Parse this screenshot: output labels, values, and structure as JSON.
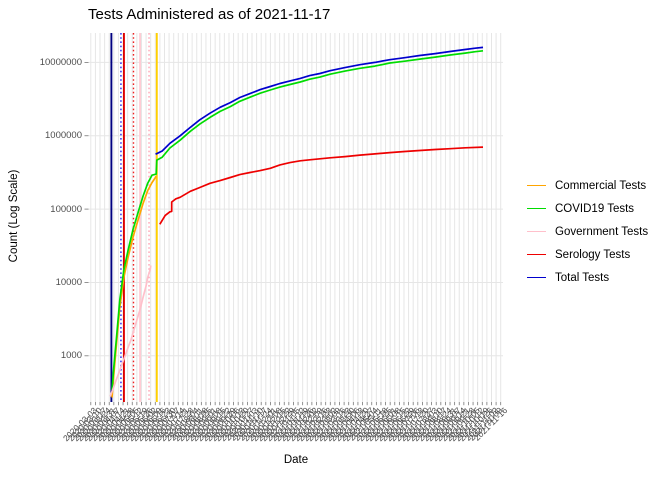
{
  "title": "Tests Administered as of 2021-11-17",
  "x_axis": {
    "label": "Date",
    "tick_labels": [
      "2020-03-03",
      "2020-03-10",
      "2020-03-17",
      "2020-03-24",
      "2020-03-31",
      "2020-04-07",
      "2020-04-14",
      "2020-04-21",
      "2020-04-28",
      "2020-05-05",
      "2020-05-12",
      "2020-05-19",
      "2020-05-26",
      "2020-06-02",
      "2020-06-09",
      "2020-06-16",
      "2020-06-23",
      "2020-06-30",
      "2020-07-07",
      "2020-07-14",
      "2020-07-21",
      "2020-07-28",
      "2020-08-04",
      "2020-08-11",
      "2020-08-18",
      "2020-08-25",
      "2020-09-01",
      "2020-09-08",
      "2020-09-15",
      "2020-09-22",
      "2020-09-29",
      "2020-10-06",
      "2020-10-13",
      "2020-10-20",
      "2020-10-27",
      "2020-11-03",
      "2020-11-10",
      "2020-11-17",
      "2020-11-24",
      "2020-12-01",
      "2020-12-08",
      "2020-12-15",
      "2020-12-22",
      "2020-12-29",
      "2021-01-05",
      "2021-01-12",
      "2021-01-19",
      "2021-01-26",
      "2021-02-02",
      "2021-02-09",
      "2021-02-16",
      "2021-02-23",
      "2021-03-02",
      "2021-03-09",
      "2021-03-16",
      "2021-03-23",
      "2021-03-30",
      "2021-04-06",
      "2021-04-13",
      "2021-04-20",
      "2021-04-27",
      "2021-05-04",
      "2021-05-11",
      "2021-05-18",
      "2021-05-25",
      "2021-06-01",
      "2021-06-08",
      "2021-06-15",
      "2021-06-22",
      "2021-06-29",
      "2021-07-06",
      "2021-07-13",
      "2021-07-20",
      "2021-07-27",
      "2021-08-03",
      "2021-08-10",
      "2021-08-17",
      "2021-08-24",
      "2021-08-31",
      "2021-09-07",
      "2021-09-14",
      "2021-09-21",
      "2021-09-28",
      "2021-10-05",
      "2021-10-12",
      "2021-10-19",
      "2021-10-26",
      "2021-11-02",
      "2021-11-09",
      "2021-11-16"
    ]
  },
  "y_axis": {
    "label": "Count (Log Scale)",
    "tick_labels": [
      "1000",
      "10000",
      "100000",
      "1000000",
      "10000000"
    ],
    "tick_values": [
      1000,
      10000,
      100000,
      1000000,
      10000000
    ]
  },
  "legend": {
    "entries": [
      {
        "label": "Commercial Tests",
        "color": "#FFA500"
      },
      {
        "label": "COVID19 Tests",
        "color": "#00DC00"
      },
      {
        "label": "Government Tests",
        "color": "#FFC0CB"
      },
      {
        "label": "Serology Tests",
        "color": "#EE0000"
      },
      {
        "label": "Total Tests",
        "color": "#0000CD"
      }
    ]
  },
  "chart_data": {
    "type": "line",
    "title": "Tests Administered as of 2021-11-17",
    "xlabel": "Date",
    "ylabel": "Count (Log Scale)",
    "y_scale": "log10",
    "ylim": [
      250,
      25000000
    ],
    "x_range": [
      "2020-03-01",
      "2021-11-17"
    ],
    "x_epoch": "2020-03-01",
    "x_max_day": 626,
    "grid": "on",
    "legend_position": "right",
    "grid_color": "#E6E6E6",
    "background": "#FFFFFF",
    "series": [
      {
        "name": "Commercial Tests",
        "color": "#FFA500",
        "points": [
          [
            5,
            270
          ],
          [
            8,
            550
          ],
          [
            12,
            1300
          ],
          [
            18,
            4600
          ],
          [
            25,
            11800
          ],
          [
            32,
            22000
          ],
          [
            40,
            41000
          ],
          [
            49,
            73000
          ],
          [
            57,
            120000
          ],
          [
            65,
            180000
          ],
          [
            72,
            230000
          ],
          [
            79,
            280000
          ]
        ]
      },
      {
        "name": "COVID19 Tests",
        "color": "#00DC00",
        "points": [
          [
            5,
            340
          ],
          [
            8,
            700
          ],
          [
            12,
            1600
          ],
          [
            18,
            5800
          ],
          [
            25,
            15000
          ],
          [
            32,
            27500
          ],
          [
            40,
            52000
          ],
          [
            49,
            92000
          ],
          [
            57,
            151000
          ],
          [
            65,
            226000
          ],
          [
            72,
            290000
          ],
          [
            79,
            300000
          ],
          [
            80,
            465000
          ],
          [
            89,
            510000
          ],
          [
            102,
            680000
          ],
          [
            119,
            870000
          ],
          [
            136,
            1150000
          ],
          [
            152,
            1440000
          ],
          [
            169,
            1780000
          ],
          [
            186,
            2150000
          ],
          [
            203,
            2500000
          ],
          [
            219,
            2950000
          ],
          [
            236,
            3350000
          ],
          [
            253,
            3800000
          ],
          [
            270,
            4200000
          ],
          [
            286,
            4600000
          ],
          [
            303,
            5000000
          ],
          [
            320,
            5400000
          ],
          [
            336,
            5900000
          ],
          [
            353,
            6300000
          ],
          [
            370,
            6900000
          ],
          [
            395,
            7600000
          ],
          [
            420,
            8300000
          ],
          [
            445,
            8900000
          ],
          [
            470,
            9800000
          ],
          [
            495,
            10400000
          ],
          [
            520,
            11100000
          ],
          [
            546,
            11800000
          ],
          [
            571,
            12600000
          ],
          [
            596,
            13400000
          ],
          [
            613,
            14000000
          ],
          [
            626,
            14400000
          ]
        ]
      },
      {
        "name": "Government Tests",
        "color": "#FFC0CB",
        "points": [
          [
            2,
            280
          ],
          [
            7,
            360
          ],
          [
            12,
            470
          ],
          [
            17,
            600
          ],
          [
            22,
            775
          ],
          [
            27,
            1000
          ],
          [
            32,
            1300
          ],
          [
            37,
            1670
          ],
          [
            42,
            2300
          ],
          [
            47,
            3150
          ],
          [
            52,
            4300
          ],
          [
            57,
            6300
          ],
          [
            62,
            8900
          ],
          [
            65,
            11800
          ],
          [
            69,
            15000
          ],
          [
            70,
            17000
          ]
        ]
      },
      {
        "name": "Serology Tests",
        "color": "#EE0000",
        "points": [
          [
            85,
            62000
          ],
          [
            94,
            82000
          ],
          [
            102,
            92000
          ],
          [
            105,
            93000
          ],
          [
            105,
            125000
          ],
          [
            112,
            138000
          ],
          [
            119,
            145000
          ],
          [
            136,
            175000
          ],
          [
            152,
            197000
          ],
          [
            169,
            225000
          ],
          [
            186,
            245000
          ],
          [
            203,
            270000
          ],
          [
            219,
            295000
          ],
          [
            236,
            315000
          ],
          [
            253,
            335000
          ],
          [
            270,
            360000
          ],
          [
            286,
            400000
          ],
          [
            303,
            430000
          ],
          [
            320,
            455000
          ],
          [
            336,
            470000
          ],
          [
            353,
            485000
          ],
          [
            370,
            500000
          ],
          [
            395,
            520000
          ],
          [
            420,
            545000
          ],
          [
            445,
            565000
          ],
          [
            470,
            590000
          ],
          [
            495,
            610000
          ],
          [
            520,
            630000
          ],
          [
            546,
            650000
          ],
          [
            571,
            665000
          ],
          [
            596,
            685000
          ],
          [
            626,
            700000
          ]
        ]
      },
      {
        "name": "Total Tests",
        "color": "#0000CD",
        "points": [
          [
            78,
            560000
          ],
          [
            89,
            620000
          ],
          [
            102,
            790000
          ],
          [
            119,
            1000000
          ],
          [
            136,
            1300000
          ],
          [
            152,
            1650000
          ],
          [
            169,
            2030000
          ],
          [
            186,
            2440000
          ],
          [
            203,
            2830000
          ],
          [
            219,
            3320000
          ],
          [
            236,
            3760000
          ],
          [
            253,
            4260000
          ],
          [
            270,
            4700000
          ],
          [
            286,
            5150000
          ],
          [
            303,
            5600000
          ],
          [
            320,
            6050000
          ],
          [
            336,
            6600000
          ],
          [
            353,
            7050000
          ],
          [
            370,
            7700000
          ],
          [
            395,
            8500000
          ],
          [
            420,
            9300000
          ],
          [
            445,
            10000000
          ],
          [
            470,
            10900000
          ],
          [
            495,
            11600000
          ],
          [
            520,
            12400000
          ],
          [
            546,
            13200000
          ],
          [
            571,
            14100000
          ],
          [
            596,
            15000000
          ],
          [
            613,
            15600000
          ],
          [
            626,
            16000000
          ]
        ]
      }
    ],
    "vlines": [
      {
        "date": "2020-03-05",
        "day": 4,
        "color": "#000080",
        "style": "solid"
      },
      {
        "date": "2020-03-21",
        "day": 20,
        "color": "#2222EE",
        "style": "dotted"
      },
      {
        "date": "2020-03-26",
        "day": 25,
        "color": "#DD0000",
        "style": "solid"
      },
      {
        "date": "2020-04-11",
        "day": 41,
        "color": "#EE2222",
        "style": "dotted"
      },
      {
        "date": "2020-04-22",
        "day": 52,
        "color": "#FFCCD4",
        "style": "solid"
      },
      {
        "date": "2020-05-07",
        "day": 67,
        "color": "#FFA3B3",
        "style": "dotted"
      },
      {
        "date": "2020-05-20",
        "day": 80,
        "color": "#FFD000",
        "style": "solid"
      }
    ]
  }
}
